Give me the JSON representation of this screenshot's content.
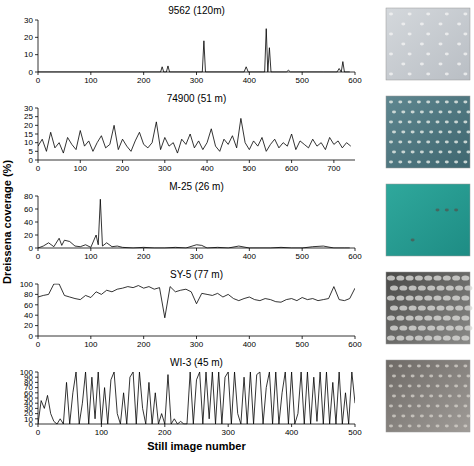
{
  "chart_data": [
    {
      "type": "line",
      "title": "9562 (120m)",
      "color": "#000000",
      "x": [
        0,
        100,
        200,
        232,
        235,
        238,
        243,
        246,
        249,
        300,
        311,
        314,
        317,
        390,
        394,
        398,
        425,
        429,
        432,
        435,
        438,
        441,
        470,
        474,
        478,
        540,
        566,
        570,
        574,
        577,
        580,
        590
      ],
      "values": [
        0,
        0,
        0,
        0,
        3,
        0,
        0,
        3.5,
        0,
        0,
        0,
        18,
        0,
        0,
        3,
        0,
        0,
        0,
        25,
        0,
        14,
        0,
        0,
        1,
        0,
        0,
        0,
        2,
        0,
        6,
        0,
        0
      ],
      "xlim": [
        0,
        600
      ],
      "xticks": [
        0,
        100,
        200,
        300,
        400,
        500,
        600
      ],
      "ylim": [
        0,
        30
      ],
      "yticks": [
        0,
        10,
        20,
        30
      ]
    },
    {
      "type": "line",
      "title": "74900 (51 m)",
      "color": "#000000",
      "x": [
        0,
        10,
        20,
        30,
        40,
        50,
        60,
        70,
        80,
        90,
        100,
        110,
        120,
        130,
        140,
        150,
        160,
        170,
        180,
        190,
        200,
        210,
        220,
        230,
        240,
        250,
        260,
        270,
        280,
        290,
        300,
        310,
        320,
        330,
        340,
        350,
        360,
        370,
        380,
        390,
        400,
        410,
        420,
        430,
        440,
        450,
        460,
        470,
        480,
        490,
        500,
        510,
        520,
        530,
        540,
        550,
        560,
        570,
        580,
        590,
        600,
        610,
        620,
        630,
        640,
        650,
        660,
        670,
        680,
        690,
        700,
        710,
        720,
        730,
        740
      ],
      "values": [
        8,
        12,
        5,
        16,
        7,
        10,
        4,
        13,
        9,
        6,
        17,
        8,
        11,
        5,
        10,
        14,
        7,
        9,
        20,
        6,
        12,
        8,
        5,
        11,
        16,
        9,
        7,
        10,
        22,
        6,
        13,
        8,
        10,
        4,
        12,
        9,
        15,
        7,
        11,
        6,
        10,
        18,
        8,
        5,
        12,
        9,
        14,
        7,
        24,
        10,
        6,
        11,
        8,
        13,
        5,
        9,
        12,
        7,
        10,
        8,
        15,
        6,
        11,
        9,
        7,
        12,
        8,
        10,
        6,
        13,
        9,
        11,
        7,
        10,
        8
      ],
      "xlim": [
        0,
        750
      ],
      "xticks": [
        0,
        100,
        200,
        300,
        400,
        500,
        600,
        700
      ],
      "ylim": [
        0,
        30
      ],
      "yticks": [
        0,
        5,
        10,
        15,
        20,
        25,
        30
      ]
    },
    {
      "type": "line",
      "title": "M-25 (26 m)",
      "color": "#000000",
      "ylabel": "Dreissena coverage (%)",
      "x": [
        0,
        10,
        20,
        30,
        40,
        45,
        50,
        60,
        70,
        80,
        90,
        100,
        110,
        114,
        118,
        122,
        130,
        140,
        150,
        160,
        180,
        200,
        220,
        240,
        260,
        280,
        300,
        310,
        320,
        340,
        360,
        380,
        400,
        420,
        440,
        460,
        480,
        500,
        520,
        540,
        560,
        580,
        590
      ],
      "values": [
        0,
        3,
        8,
        2,
        15,
        4,
        12,
        10,
        3,
        2,
        5,
        1,
        20,
        5,
        75,
        3,
        8,
        2,
        3,
        1,
        0,
        1,
        0,
        0,
        1,
        0,
        5,
        4,
        0,
        1,
        0,
        3,
        0,
        0,
        0,
        1,
        0,
        0,
        2,
        3,
        0,
        0,
        0
      ],
      "xlim": [
        0,
        600
      ],
      "xticks": [
        0,
        100,
        200,
        300,
        400,
        500,
        600
      ],
      "ylim": [
        0,
        80
      ],
      "yticks": [
        0,
        20,
        40,
        60,
        80
      ]
    },
    {
      "type": "line",
      "title": "SY-5 (77 m)",
      "color": "#000000",
      "x": [
        0,
        10,
        20,
        30,
        40,
        50,
        60,
        70,
        80,
        90,
        100,
        110,
        120,
        130,
        140,
        150,
        160,
        170,
        180,
        190,
        200,
        210,
        220,
        230,
        240,
        250,
        260,
        270,
        280,
        290,
        300,
        310,
        320,
        330,
        340,
        350,
        360,
        370,
        380,
        390,
        400,
        410,
        420,
        430,
        440,
        450,
        460,
        470,
        480,
        490,
        500,
        510,
        520,
        530,
        540,
        550,
        560,
        570,
        580,
        590,
        600
      ],
      "values": [
        75,
        78,
        80,
        100,
        100,
        78,
        75,
        72,
        70,
        78,
        74,
        85,
        80,
        88,
        85,
        90,
        92,
        95,
        93,
        97,
        92,
        95,
        90,
        93,
        35,
        95,
        85,
        88,
        90,
        85,
        62,
        82,
        80,
        78,
        82,
        75,
        80,
        72,
        68,
        72,
        75,
        70,
        68,
        72,
        70,
        66,
        65,
        70,
        72,
        68,
        74,
        70,
        72,
        68,
        70,
        72,
        95,
        70,
        68,
        72,
        92
      ],
      "xlim": [
        0,
        600
      ],
      "xticks": [
        0,
        100,
        200,
        300,
        400,
        500,
        600
      ],
      "ylim": [
        0,
        100
      ],
      "yticks": [
        0,
        20,
        40,
        60,
        80,
        100
      ]
    },
    {
      "type": "line",
      "title": "WI-3 (45 m)",
      "color": "#000000",
      "xlabel": "Still image number",
      "x": [
        0,
        5,
        10,
        15,
        20,
        25,
        30,
        35,
        40,
        45,
        50,
        55,
        60,
        65,
        70,
        75,
        80,
        85,
        90,
        95,
        100,
        105,
        110,
        115,
        120,
        125,
        130,
        135,
        140,
        145,
        150,
        155,
        160,
        165,
        170,
        175,
        180,
        185,
        190,
        195,
        200,
        205,
        210,
        215,
        220,
        225,
        230,
        235,
        240,
        245,
        250,
        255,
        260,
        265,
        270,
        275,
        280,
        285,
        290,
        295,
        300,
        305,
        310,
        315,
        320,
        325,
        330,
        335,
        340,
        345,
        350,
        355,
        360,
        365,
        370,
        375,
        380,
        385,
        390,
        395,
        400,
        405,
        410,
        415,
        420,
        425,
        430,
        435,
        440,
        445,
        450,
        455,
        460,
        465,
        470,
        475,
        480,
        485,
        490,
        495,
        500
      ],
      "values": [
        0,
        45,
        30,
        55,
        20,
        5,
        0,
        10,
        0,
        80,
        0,
        60,
        100,
        0,
        40,
        100,
        0,
        90,
        10,
        100,
        0,
        70,
        0,
        85,
        100,
        20,
        0,
        60,
        0,
        90,
        100,
        0,
        100,
        30,
        0,
        80,
        0,
        60,
        0,
        20,
        0,
        95,
        0,
        10,
        0,
        5,
        0,
        0,
        100,
        0,
        85,
        100,
        0,
        100,
        10,
        100,
        0,
        100,
        0,
        90,
        100,
        0,
        100,
        20,
        0,
        90,
        0,
        100,
        0,
        95,
        100,
        0,
        70,
        100,
        0,
        100,
        0,
        60,
        100,
        0,
        100,
        0,
        20,
        100,
        0,
        100,
        0,
        90,
        5,
        100,
        0,
        100,
        0,
        80,
        0,
        100,
        0,
        60,
        0,
        100,
        40
      ],
      "xlim": [
        0,
        500
      ],
      "xticks": [
        0,
        100,
        200,
        300,
        400,
        500
      ],
      "ylim": [
        0,
        100
      ],
      "yticks": [
        0,
        10,
        20,
        30,
        40,
        50,
        60,
        70,
        80,
        90,
        100
      ]
    }
  ]
}
